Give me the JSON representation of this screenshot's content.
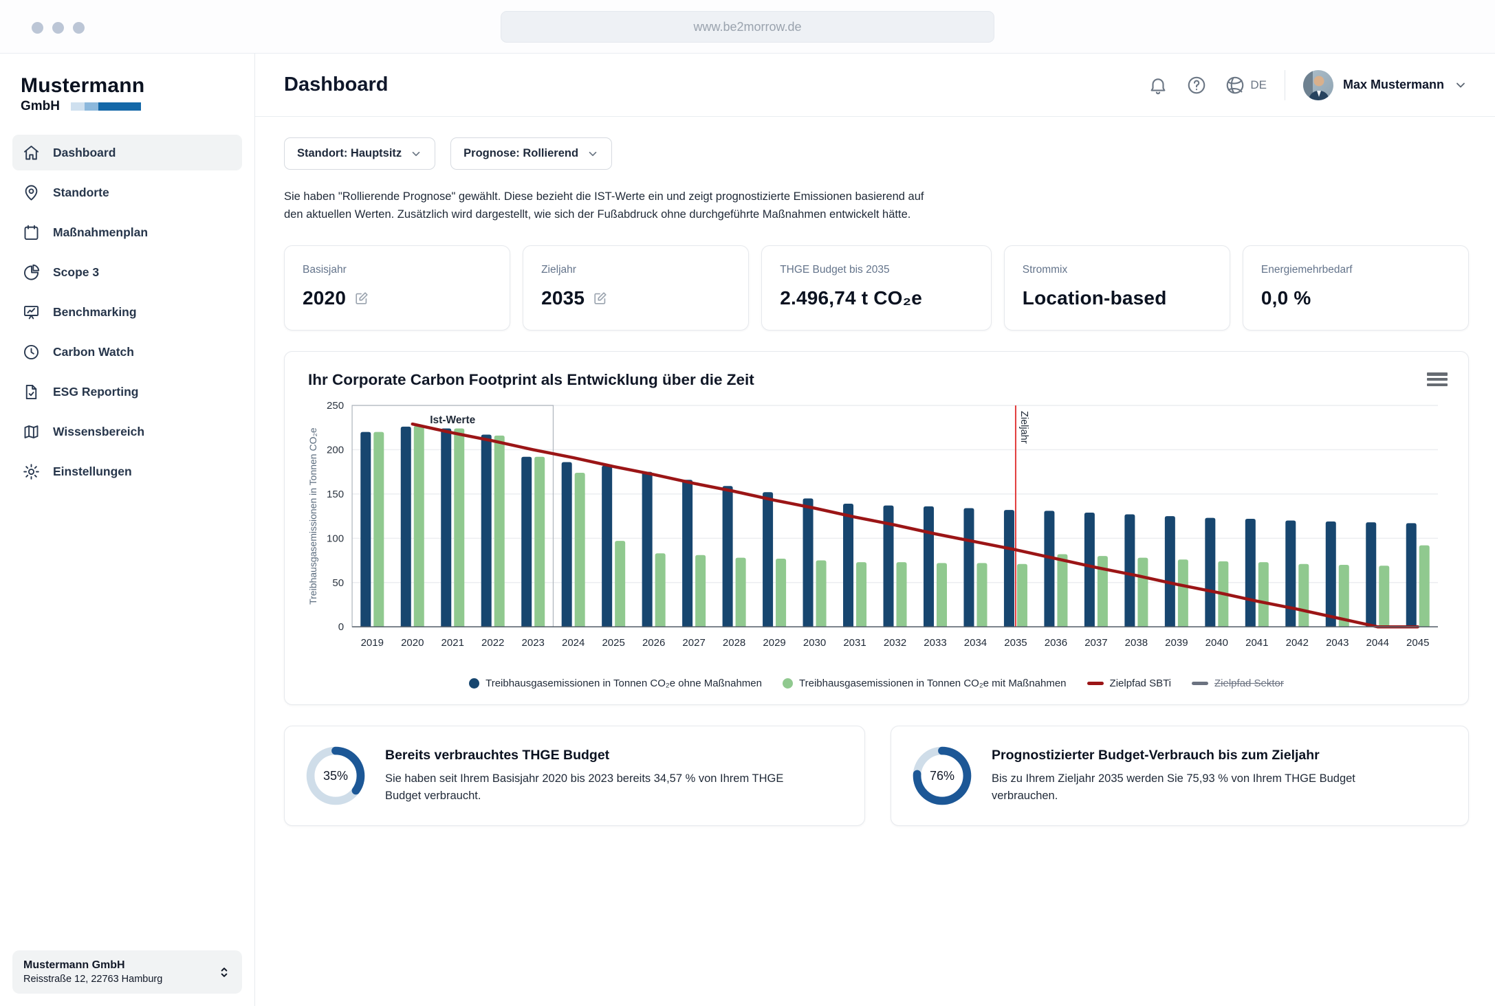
{
  "browser": {
    "url": "www.be2morrow.de"
  },
  "sidebar": {
    "logo_name": "Mustermann",
    "logo_suffix": "GmbH",
    "items": [
      {
        "label": "Dashboard",
        "icon": "home-icon",
        "active": true
      },
      {
        "label": "Standorte",
        "icon": "map-pin-icon",
        "active": false
      },
      {
        "label": "Maßnahmenplan",
        "icon": "calendar-icon",
        "active": false
      },
      {
        "label": "Scope 3",
        "icon": "pie-chart-icon",
        "active": false
      },
      {
        "label": "Benchmarking",
        "icon": "presentation-chart-icon",
        "active": false
      },
      {
        "label": "Carbon Watch",
        "icon": "clock-icon",
        "active": false
      },
      {
        "label": "ESG Reporting",
        "icon": "document-check-icon",
        "active": false
      },
      {
        "label": "Wissensbereich",
        "icon": "map-book-icon",
        "active": false
      },
      {
        "label": "Einstellungen",
        "icon": "gear-icon",
        "active": false
      }
    ],
    "org": {
      "name": "Mustermann GmbH",
      "address": "Reisstraße 12, 22763 Hamburg"
    }
  },
  "header": {
    "title": "Dashboard",
    "language": "DE",
    "user_name": "Max Mustermann"
  },
  "filters": [
    {
      "label": "Standort: Hauptsitz"
    },
    {
      "label": "Prognose: Rollierend"
    }
  ],
  "info_text": "Sie haben \"Rollierende Prognose\" gewählt. Diese bezieht die IST-Werte ein und zeigt prognostizierte Emissionen basierend auf den aktuellen Werten. Zusätzlich wird dargestellt, wie sich der Fußabdruck ohne durchgeführte Maßnahmen entwickelt hätte.",
  "kpi_cards": [
    {
      "label": "Basisjahr",
      "value": "2020"
    },
    {
      "label": "Zieljahr",
      "value": "2035"
    },
    {
      "label": "THGE Budget bis 2035",
      "value": "2.496,74 t CO₂e"
    },
    {
      "label": "Strommix",
      "value": "Location-based"
    },
    {
      "label": "Energiemehrbedarf",
      "value": "0,0 %"
    }
  ],
  "chart_data": {
    "type": "bar",
    "title": "Ihr Corporate Carbon Footprint als Entwicklung über die Zeit",
    "xlabel": "",
    "ylabel": "Treibhausgasemissionen in Tonnen CO₂e",
    "ylim": [
      0,
      250
    ],
    "yticks": [
      0,
      50,
      100,
      150,
      200,
      250
    ],
    "grid": true,
    "legend_position": "bottom",
    "categories": [
      2019,
      2020,
      2021,
      2022,
      2023,
      2024,
      2025,
      2026,
      2027,
      2028,
      2029,
      2030,
      2031,
      2032,
      2033,
      2034,
      2035,
      2036,
      2037,
      2038,
      2039,
      2040,
      2041,
      2042,
      2043,
      2044,
      2045
    ],
    "series": [
      {
        "name": "Treibhausgasemissionen in Tonnen CO₂e ohne Maßnahmen",
        "type": "bar",
        "color": "#17466f",
        "values": [
          220,
          226,
          224,
          217,
          192,
          186,
          182,
          175,
          166,
          159,
          152,
          145,
          139,
          137,
          136,
          134,
          132,
          131,
          129,
          127,
          125,
          123,
          122,
          120,
          119,
          118,
          117
        ]
      },
      {
        "name": "Treibhausgasemissionen in Tonnen CO₂e mit Maßnahmen",
        "type": "bar",
        "color": "#90c98f",
        "values": [
          220,
          227,
          224,
          216,
          192,
          174,
          97,
          83,
          81,
          78,
          77,
          75,
          73,
          73,
          72,
          72,
          71,
          82,
          80,
          78,
          76,
          74,
          73,
          71,
          70,
          69,
          92
        ]
      },
      {
        "name": "Zielpfad SBTi",
        "type": "line",
        "color": "#9b1516",
        "values": [
          null,
          229,
          219,
          210,
          200,
          191,
          181,
          172,
          162,
          153,
          143,
          134,
          124,
          115,
          105,
          96,
          87,
          77,
          67,
          58,
          48,
          39,
          29,
          20,
          10,
          0,
          0
        ]
      },
      {
        "name": "Zielpfad Sektor",
        "type": "line",
        "color": "#6b7280",
        "disabled": true,
        "values": []
      }
    ],
    "annotations": {
      "ist_werte_box": {
        "label": "Ist-Werte",
        "from_year": 2019,
        "to_year": 2023
      },
      "zieljahr_line": {
        "label": "Zieljahr",
        "year": 2035,
        "color": "#e23b3b"
      }
    }
  },
  "budget_cards": [
    {
      "percent": 35,
      "percent_label": "35%",
      "title": "Bereits verbrauchtes THGE Budget",
      "text": "Sie haben seit Ihrem Basisjahr 2020 bis 2023 bereits 34,57 % von Ihrem THGE Budget verbraucht."
    },
    {
      "percent": 76,
      "percent_label": "76%",
      "title": "Prognostizierter Budget-Verbrauch bis zum Zieljahr",
      "text": "Bis zu Ihrem Zieljahr 2035 werden Sie 75,93 % von Ihrem THGE Budget verbrauchen."
    }
  ],
  "colors": {
    "accent_blue": "#1468a8",
    "bar_blue": "#17466f",
    "bar_green": "#90c98f",
    "sbti_red": "#9b1516",
    "zieljahr_red": "#e23b3b",
    "donut_blue": "#1c5796",
    "donut_track": "#cfdde9"
  }
}
